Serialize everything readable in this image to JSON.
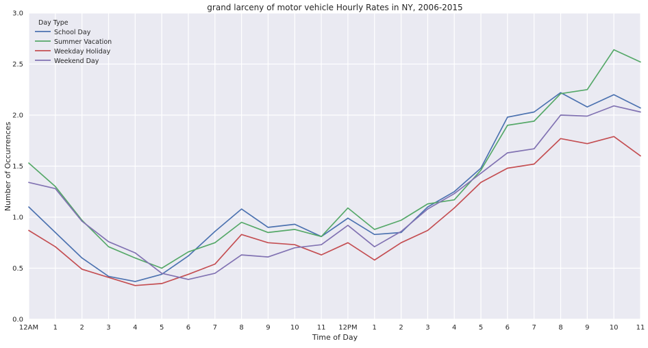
{
  "chart_data": {
    "type": "line",
    "title": "grand larceny of motor vehicle Hourly Rates in NY, 2006-2015",
    "xlabel": "Time of Day",
    "ylabel": "Number of Occurrences",
    "ylim": [
      0,
      3.0
    ],
    "yticks": [
      "0.0",
      "0.5",
      "1.0",
      "1.5",
      "2.0",
      "2.5",
      "3.0"
    ],
    "categories": [
      "12AM",
      "1",
      "2",
      "3",
      "4",
      "5",
      "6",
      "7",
      "8",
      "9",
      "10",
      "11",
      "12PM",
      "1",
      "2",
      "3",
      "4",
      "5",
      "6",
      "7",
      "8",
      "9",
      "10",
      "11"
    ],
    "grid": true,
    "legend": {
      "title": "Day Type",
      "placement": "top-left"
    },
    "series": [
      {
        "name": "School Day",
        "color": "#4c72b0",
        "values": [
          1.1,
          0.85,
          0.6,
          0.42,
          0.37,
          0.44,
          0.62,
          0.86,
          1.08,
          0.9,
          0.93,
          0.81,
          0.99,
          0.83,
          0.85,
          1.1,
          1.25,
          1.48,
          1.98,
          2.03,
          2.22,
          2.08,
          2.2,
          2.07
        ]
      },
      {
        "name": "Summer Vacation",
        "color": "#55a868",
        "values": [
          1.53,
          1.3,
          0.97,
          0.71,
          0.6,
          0.5,
          0.66,
          0.75,
          0.95,
          0.85,
          0.88,
          0.81,
          1.09,
          0.88,
          0.97,
          1.13,
          1.17,
          1.46,
          1.9,
          1.94,
          2.21,
          2.25,
          2.64,
          2.52
        ]
      },
      {
        "name": "Weekday Holiday",
        "color": "#c44e52",
        "values": [
          0.87,
          0.71,
          0.49,
          0.41,
          0.33,
          0.35,
          0.44,
          0.54,
          0.83,
          0.75,
          0.73,
          0.63,
          0.75,
          0.58,
          0.75,
          0.87,
          1.09,
          1.34,
          1.48,
          1.52,
          1.77,
          1.72,
          1.79,
          1.6
        ]
      },
      {
        "name": "Weekend Day",
        "color": "#8172b2",
        "values": [
          1.34,
          1.28,
          0.96,
          0.76,
          0.65,
          0.45,
          0.39,
          0.45,
          0.63,
          0.61,
          0.7,
          0.73,
          0.92,
          0.71,
          0.86,
          1.08,
          1.23,
          1.43,
          1.63,
          1.67,
          2.0,
          1.99,
          2.09,
          2.03
        ]
      }
    ]
  }
}
